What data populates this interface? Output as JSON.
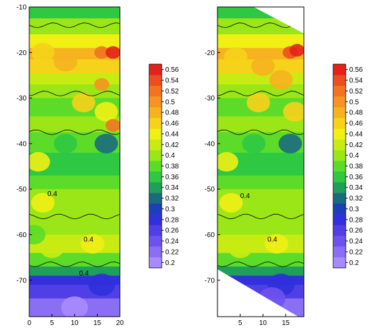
{
  "chart_data": [
    {
      "type": "heatmap",
      "title": "",
      "xlabel": "",
      "ylabel": "",
      "xlim": [
        0,
        20
      ],
      "ylim": [
        -78,
        -10
      ],
      "x_ticks": [
        "0",
        "5",
        "10",
        "15",
        "20"
      ],
      "y_ticks": [
        "-10",
        "-20",
        "-30",
        "-40",
        "-50",
        "-60",
        "-70"
      ],
      "contour_labels": [
        "0.4",
        "0.4",
        "0.4"
      ],
      "clip": "rectangle",
      "colorbar": {
        "levels": [
          "0.2",
          "0.22",
          "0.24",
          "0.26",
          "0.28",
          "0.3",
          "0.32",
          "0.34",
          "0.36",
          "0.38",
          "0.4",
          "0.42",
          "0.44",
          "0.46",
          "0.48",
          "0.5",
          "0.52",
          "0.54",
          "0.56"
        ],
        "colors": [
          "#a98bff",
          "#8a6ff5",
          "#6e52ee",
          "#4f3fe4",
          "#3030dc",
          "#1b3fb8",
          "#1a6b7e",
          "#1f9f5a",
          "#2ec843",
          "#5cdc29",
          "#9be617",
          "#c8ec13",
          "#f0f015",
          "#f6d21a",
          "#f6b31f",
          "#f59422",
          "#f27422",
          "#ec4f1f",
          "#e3221a"
        ]
      },
      "bands": [
        {
          "y": [
            -10,
            -12.5
          ],
          "value": 0.36
        },
        {
          "y": [
            -12.5,
            -16
          ],
          "value": 0.4
        },
        {
          "y": [
            -16,
            -19
          ],
          "value": 0.44
        },
        {
          "y": [
            -19,
            -21.5
          ],
          "value": 0.48
        },
        {
          "y": [
            -21.5,
            -24.5
          ],
          "value": 0.46
        },
        {
          "y": [
            -24.5,
            -27
          ],
          "value": 0.43
        },
        {
          "y": [
            -27,
            -30
          ],
          "value": 0.4
        },
        {
          "y": [
            -30,
            -34
          ],
          "value": 0.38
        },
        {
          "y": [
            -34,
            -37.5
          ],
          "value": 0.41
        },
        {
          "y": [
            -37.5,
            -42
          ],
          "value": 0.38
        },
        {
          "y": [
            -42,
            -47
          ],
          "value": 0.36
        },
        {
          "y": [
            -47,
            -50
          ],
          "value": 0.38
        },
        {
          "y": [
            -50,
            -53
          ],
          "value": 0.4
        },
        {
          "y": [
            -53,
            -56
          ],
          "value": 0.41
        },
        {
          "y": [
            -56,
            -60
          ],
          "value": 0.4
        },
        {
          "y": [
            -60,
            -64
          ],
          "value": 0.42
        },
        {
          "y": [
            -64,
            -67
          ],
          "value": 0.38
        },
        {
          "y": [
            -67,
            -69
          ],
          "value": 0.33
        },
        {
          "y": [
            -69,
            -71
          ],
          "value": 0.29
        },
        {
          "y": [
            -71,
            -74
          ],
          "value": 0.26
        },
        {
          "y": [
            -74,
            -78
          ],
          "value": 0.22
        }
      ],
      "blobs": [
        {
          "x": 3,
          "y": -20,
          "value": 0.45
        },
        {
          "x": 8,
          "y": -22,
          "value": 0.48
        },
        {
          "x": 16,
          "y": -20,
          "value": 0.52
        },
        {
          "x": 18.5,
          "y": -20,
          "value": 0.56
        },
        {
          "x": 16,
          "y": -27,
          "value": 0.5
        },
        {
          "x": 12,
          "y": -31,
          "value": 0.46
        },
        {
          "x": 17,
          "y": -33,
          "value": 0.44
        },
        {
          "x": 18.5,
          "y": -36,
          "value": 0.52
        },
        {
          "x": 2,
          "y": -44,
          "value": 0.44
        },
        {
          "x": 17,
          "y": -40,
          "value": 0.32
        },
        {
          "x": 8,
          "y": -40,
          "value": 0.37
        },
        {
          "x": 3,
          "y": -53,
          "value": 0.44
        },
        {
          "x": 14,
          "y": -62,
          "value": 0.44
        },
        {
          "x": 5,
          "y": -63,
          "value": 0.42
        },
        {
          "x": 1,
          "y": -60,
          "value": 0.38
        },
        {
          "x": 10,
          "y": -76,
          "value": 0.2
        },
        {
          "x": 16,
          "y": -71,
          "value": 0.28
        }
      ]
    },
    {
      "type": "heatmap",
      "title": "",
      "xlabel": "",
      "ylabel": "",
      "xlim": [
        0,
        19
      ],
      "ylim": [
        -78,
        -10
      ],
      "x_ticks": [
        "5",
        "10",
        "15"
      ],
      "y_ticks": [
        "-20",
        "-30",
        "-40",
        "-50",
        "-60",
        "-70"
      ],
      "contour_labels": [
        "0.4",
        "0.4"
      ],
      "clip": "diagonal",
      "colorbar": {
        "levels": [
          "0.2",
          "0.22",
          "0.24",
          "0.26",
          "0.28",
          "0.3",
          "0.32",
          "0.34",
          "0.36",
          "0.38",
          "0.4",
          "0.42",
          "0.44",
          "0.46",
          "0.48",
          "0.5",
          "0.52",
          "0.54",
          "0.56"
        ],
        "colors": [
          "#a98bff",
          "#8a6ff5",
          "#6e52ee",
          "#4f3fe4",
          "#3030dc",
          "#1b3fb8",
          "#1a6b7e",
          "#1f9f5a",
          "#2ec843",
          "#5cdc29",
          "#9be617",
          "#c8ec13",
          "#f0f015",
          "#f6d21a",
          "#f6b31f",
          "#f59422",
          "#f27422",
          "#ec4f1f",
          "#e3221a"
        ]
      },
      "bands": [
        {
          "y": [
            -10,
            -12.5
          ],
          "value": 0.36
        },
        {
          "y": [
            -12.5,
            -16
          ],
          "value": 0.4
        },
        {
          "y": [
            -16,
            -19
          ],
          "value": 0.44
        },
        {
          "y": [
            -19,
            -21.5
          ],
          "value": 0.48
        },
        {
          "y": [
            -21.5,
            -24.5
          ],
          "value": 0.46
        },
        {
          "y": [
            -24.5,
            -27
          ],
          "value": 0.43
        },
        {
          "y": [
            -27,
            -30
          ],
          "value": 0.4
        },
        {
          "y": [
            -30,
            -34
          ],
          "value": 0.38
        },
        {
          "y": [
            -34,
            -37.5
          ],
          "value": 0.41
        },
        {
          "y": [
            -37.5,
            -42
          ],
          "value": 0.38
        },
        {
          "y": [
            -42,
            -47
          ],
          "value": 0.36
        },
        {
          "y": [
            -47,
            -50
          ],
          "value": 0.38
        },
        {
          "y": [
            -50,
            -53
          ],
          "value": 0.4
        },
        {
          "y": [
            -53,
            -56
          ],
          "value": 0.41
        },
        {
          "y": [
            -56,
            -60
          ],
          "value": 0.4
        },
        {
          "y": [
            -60,
            -64
          ],
          "value": 0.42
        },
        {
          "y": [
            -64,
            -67
          ],
          "value": 0.38
        },
        {
          "y": [
            -67,
            -69
          ],
          "value": 0.33
        },
        {
          "y": [
            -69,
            -71
          ],
          "value": 0.29
        },
        {
          "y": [
            -71,
            -74
          ],
          "value": 0.26
        },
        {
          "y": [
            -74,
            -78
          ],
          "value": 0.22
        }
      ],
      "blobs": [
        {
          "x": 4,
          "y": -21,
          "value": 0.46
        },
        {
          "x": 10,
          "y": -23,
          "value": 0.48
        },
        {
          "x": 16,
          "y": -20,
          "value": 0.54
        },
        {
          "x": 17.5,
          "y": -19.5,
          "value": 0.56
        },
        {
          "x": 14,
          "y": -26,
          "value": 0.48
        },
        {
          "x": 9,
          "y": -31,
          "value": 0.46
        },
        {
          "x": 17,
          "y": -33,
          "value": 0.46
        },
        {
          "x": 2,
          "y": -44,
          "value": 0.44
        },
        {
          "x": 16,
          "y": -40,
          "value": 0.32
        },
        {
          "x": 8,
          "y": -40,
          "value": 0.37
        },
        {
          "x": 3,
          "y": -53,
          "value": 0.44
        },
        {
          "x": 13,
          "y": -62,
          "value": 0.44
        },
        {
          "x": 5,
          "y": -63,
          "value": 0.42
        },
        {
          "x": 14,
          "y": -71,
          "value": 0.28
        },
        {
          "x": 12,
          "y": -74,
          "value": 0.24
        }
      ]
    }
  ]
}
